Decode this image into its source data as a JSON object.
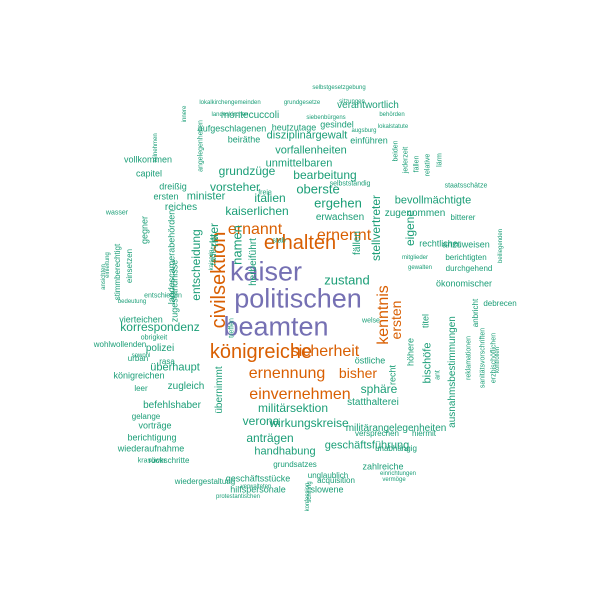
{
  "colors": {
    "tier1": "#7570b3",
    "tier2": "#d95f02",
    "tier3": "#1b9e77"
  },
  "words": [
    {
      "text": "kaiser",
      "tier": "tier1"
    },
    {
      "text": "politischen",
      "tier": "tier1"
    },
    {
      "text": "beamten",
      "tier": "tier1"
    },
    {
      "text": "erhalten",
      "tier": "tier2"
    },
    {
      "text": "civilsektion",
      "tier": "tier2"
    },
    {
      "text": "königreiche",
      "tier": "tier2"
    },
    {
      "text": "ernannt",
      "tier": "tier2"
    },
    {
      "text": "ernennt",
      "tier": "tier2"
    },
    {
      "text": "ernennung",
      "tier": "tier2"
    },
    {
      "text": "sicherheit",
      "tier": "tier2"
    },
    {
      "text": "einvernehmen",
      "tier": "tier2"
    },
    {
      "text": "kenntnis",
      "tier": "tier2"
    },
    {
      "text": "ersten",
      "tier": "tier2"
    },
    {
      "text": "bisher",
      "tier": "tier2"
    },
    {
      "text": "militärsektion",
      "tier": "tier3"
    },
    {
      "text": "oberste",
      "tier": "tier3"
    },
    {
      "text": "ergehen",
      "tier": "tier3"
    },
    {
      "text": "vorsteher",
      "tier": "tier3"
    },
    {
      "text": "grundzüge",
      "tier": "tier3"
    },
    {
      "text": "bearbeitung",
      "tier": "tier3"
    },
    {
      "text": "italien",
      "tier": "tier3"
    },
    {
      "text": "minister",
      "tier": "tier3"
    },
    {
      "text": "kaiserlichen",
      "tier": "tier3"
    },
    {
      "text": "namen",
      "tier": "tier3"
    },
    {
      "text": "entscheidung",
      "tier": "tier3"
    },
    {
      "text": "korrespondenz",
      "tier": "tier3"
    },
    {
      "text": "zustand",
      "tier": "tier3"
    },
    {
      "text": "stellvertreter",
      "tier": "tier3"
    },
    {
      "text": "eigene",
      "tier": "tier3"
    },
    {
      "text": "sphäre",
      "tier": "tier3"
    },
    {
      "text": "überhaupt",
      "tier": "tier3"
    },
    {
      "text": "polizei",
      "tier": "tier3"
    },
    {
      "text": "verona",
      "tier": "tier3"
    },
    {
      "text": "wirkungskreise",
      "tier": "tier3"
    },
    {
      "text": "anträgen",
      "tier": "tier3"
    },
    {
      "text": "geschäftsführung",
      "tier": "tier3"
    },
    {
      "text": "handhabung",
      "tier": "tier3"
    },
    {
      "text": "militärangelegenheiten",
      "tier": "tier3"
    },
    {
      "text": "statthalterei",
      "tier": "tier3"
    },
    {
      "text": "bischöfe",
      "tier": "tier3"
    },
    {
      "text": "ausnahmsbestimmungen",
      "tier": "tier3"
    },
    {
      "text": "bevollmächtigte",
      "tier": "tier3"
    },
    {
      "text": "disziplinargewalt",
      "tier": "tier3"
    },
    {
      "text": "vorfallenheiten",
      "tier": "tier3"
    },
    {
      "text": "unmittelbaren",
      "tier": "tier3"
    },
    {
      "text": "verantwortlich",
      "tier": "tier3"
    },
    {
      "text": "montecuccoli",
      "tier": "tier3"
    },
    {
      "text": "aufgeschlagenen",
      "tier": "tier3"
    },
    {
      "text": "heutzutage",
      "tier": "tier3"
    },
    {
      "text": "gesindel",
      "tier": "tier3"
    },
    {
      "text": "beiräthe",
      "tier": "tier3"
    },
    {
      "text": "einführen",
      "tier": "tier3"
    },
    {
      "text": "erwachsen",
      "tier": "tier3"
    },
    {
      "text": "zugenommen",
      "tier": "tier3"
    },
    {
      "text": "fällen",
      "tier": "tier3"
    },
    {
      "text": "reiches",
      "tier": "tier3"
    },
    {
      "text": "ritter",
      "tier": "tier3"
    },
    {
      "text": "herbeiführt",
      "tier": "tier3"
    },
    {
      "text": "übernimmt",
      "tier": "tier3"
    },
    {
      "text": "recht",
      "tier": "tier3"
    },
    {
      "text": "höhere",
      "tier": "tier3"
    },
    {
      "text": "titel",
      "tier": "tier3"
    },
    {
      "text": "befehlshaber",
      "tier": "tier3"
    },
    {
      "text": "zugleich",
      "tier": "tier3"
    },
    {
      "text": "königreichen",
      "tier": "tier3"
    },
    {
      "text": "vorträge",
      "tier": "tier3"
    },
    {
      "text": "berichtigung",
      "tier": "tier3"
    },
    {
      "text": "wiederaufnahme",
      "tier": "tier3"
    },
    {
      "text": "rückschritte",
      "tier": "tier3"
    },
    {
      "text": "wiedergestaltung",
      "tier": "tier3"
    },
    {
      "text": "geschäftsstücke",
      "tier": "tier3"
    },
    {
      "text": "hilfspersonale",
      "tier": "tier3"
    },
    {
      "text": "slowene",
      "tier": "tier3"
    },
    {
      "text": "unglaublich",
      "tier": "tier3"
    },
    {
      "text": "zahlreiche",
      "tier": "tier3"
    },
    {
      "text": "grundsatzes",
      "tier": "tier3"
    },
    {
      "text": "unabhängig",
      "tier": "tier3"
    },
    {
      "text": "versprechen",
      "tier": "tier3"
    },
    {
      "text": "hiermit",
      "tier": "tier3"
    },
    {
      "text": "acquisition",
      "tier": "tier3"
    },
    {
      "text": "östliche",
      "tier": "tier3"
    },
    {
      "text": "ant",
      "tier": "tier3"
    },
    {
      "text": "reklamationen",
      "tier": "tier3"
    },
    {
      "text": "sanitätsvorschriften",
      "tier": "tier3"
    },
    {
      "text": "erzbischöflichen",
      "tier": "tier3"
    },
    {
      "text": "ökonomischer",
      "tier": "tier3"
    },
    {
      "text": "durchgehend",
      "tier": "tier3"
    },
    {
      "text": "berichtigten",
      "tier": "tier3"
    },
    {
      "text": "rechtlicher",
      "tier": "tier3"
    },
    {
      "text": "anzuweisen",
      "tier": "tier3"
    },
    {
      "text": "bitterer",
      "tier": "tier3"
    },
    {
      "text": "debrecen",
      "tier": "tier3"
    },
    {
      "text": "anbricht",
      "tier": "tier3"
    },
    {
      "text": "gegner",
      "tier": "tier3"
    },
    {
      "text": "landescamerabehörden",
      "tier": "tier3"
    },
    {
      "text": "zugeständnisse",
      "tier": "tier3"
    },
    {
      "text": "radetzky",
      "tier": "tier3"
    },
    {
      "text": "einsetzen",
      "tier": "tier3"
    },
    {
      "text": "stimmberechtigt",
      "tier": "tier3"
    },
    {
      "text": "vierteichen",
      "tier": "tier3"
    },
    {
      "text": "wohlwollenden",
      "tier": "tier3"
    },
    {
      "text": "urban",
      "tier": "tier3"
    },
    {
      "text": "rasa",
      "tier": "tier3"
    },
    {
      "text": "leer",
      "tier": "tier3"
    },
    {
      "text": "gelange",
      "tier": "tier3"
    },
    {
      "text": "krasower",
      "tier": "tier3"
    },
    {
      "text": "verwalteten",
      "tier": "tier3"
    },
    {
      "text": "protestantischen",
      "tier": "tier3"
    },
    {
      "text": "einrichtungen",
      "tier": "tier3"
    },
    {
      "text": "vermöge",
      "tier": "tier3"
    },
    {
      "text": "vollkommen",
      "tier": "tier3"
    },
    {
      "text": "capitel",
      "tier": "tier3"
    },
    {
      "text": "dreißig",
      "tier": "tier3"
    },
    {
      "text": "ersten",
      "tier": "tier3"
    },
    {
      "text": "wasser",
      "tier": "tier3"
    },
    {
      "text": "obrigkeit",
      "tier": "tier3"
    },
    {
      "text": "sowohl",
      "tier": "tier3"
    },
    {
      "text": "selbstgesetzgebung",
      "tier": "tier3"
    },
    {
      "text": "lokalkirchengemeinden",
      "tier": "tier3"
    },
    {
      "text": "grundgesetze",
      "tier": "tier3"
    },
    {
      "text": "landeskirchen",
      "tier": "tier3"
    },
    {
      "text": "siebenbürgens",
      "tier": "tier3"
    },
    {
      "text": "behörden",
      "tier": "tier3"
    },
    {
      "text": "lokalstatute",
      "tier": "tier3"
    },
    {
      "text": "augsburg",
      "tier": "tier3"
    },
    {
      "text": "beiden",
      "tier": "tier3"
    },
    {
      "text": "jederzeit",
      "tier": "tier3"
    },
    {
      "text": "fällen",
      "tier": "tier3"
    },
    {
      "text": "relative",
      "tier": "tier3"
    },
    {
      "text": "lärm",
      "tier": "tier3"
    },
    {
      "text": "staatsschätze",
      "tier": "tier3"
    },
    {
      "text": "selbstständig",
      "tier": "tier3"
    },
    {
      "text": "freie",
      "tier": "tier3"
    },
    {
      "text": "stab",
      "tier": "tier3"
    },
    {
      "text": "welse",
      "tier": "tier3"
    },
    {
      "text": "treffen",
      "tier": "tier3"
    },
    {
      "text": "innere",
      "tier": "tier3"
    },
    {
      "text": "angelegenheiten",
      "tier": "tier3"
    },
    {
      "text": "teilnehmen",
      "tier": "tier3"
    },
    {
      "text": "einleitung",
      "tier": "tier3"
    },
    {
      "text": "ansichten",
      "tier": "tier3"
    },
    {
      "text": "beiliegenden",
      "tier": "tier3"
    },
    {
      "text": "schilling",
      "tier": "tier3"
    },
    {
      "text": "sitzungen",
      "tier": "tier3"
    },
    {
      "text": "entschieden",
      "tier": "tier3"
    },
    {
      "text": "bedeutung",
      "tier": "tier3"
    },
    {
      "text": "kontrollen",
      "tier": "tier3"
    },
    {
      "text": "kaiserin",
      "tier": "tier3"
    },
    {
      "text": "mitglieder",
      "tier": "tier3"
    },
    {
      "text": "gewalten",
      "tier": "tier3"
    },
    {
      "text": "konfession",
      "tier": "tier3"
    }
  ]
}
